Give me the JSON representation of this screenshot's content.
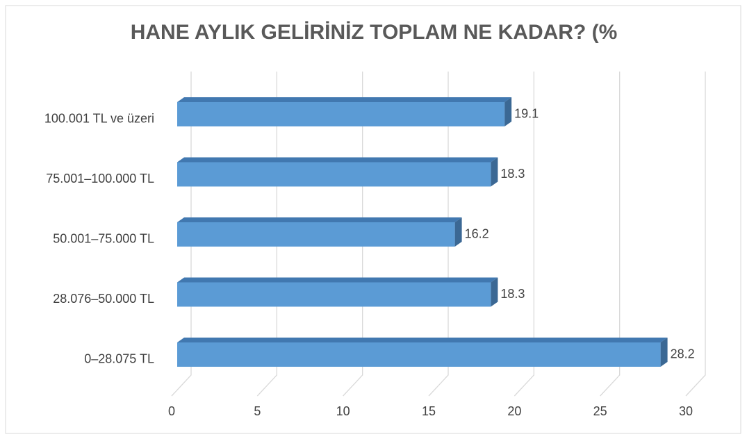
{
  "chart_data": {
    "type": "bar",
    "orientation": "horizontal",
    "title": "HANE AYLIK GELİRİNİZ TOPLAM NE KADAR? (%",
    "categories": [
      "0–28.075 TL",
      "28.076–50.000 TL",
      "50.001–75.000 TL",
      "75.001–100.000 TL",
      "100.001 TL ve üzeri"
    ],
    "values": [
      28.2,
      18.3,
      16.2,
      18.3,
      19.1
    ],
    "color": "#5b9bd5",
    "xlim": [
      0,
      30
    ],
    "xticks": [
      0,
      5,
      10,
      15,
      20,
      25,
      30
    ],
    "grid": true
  }
}
